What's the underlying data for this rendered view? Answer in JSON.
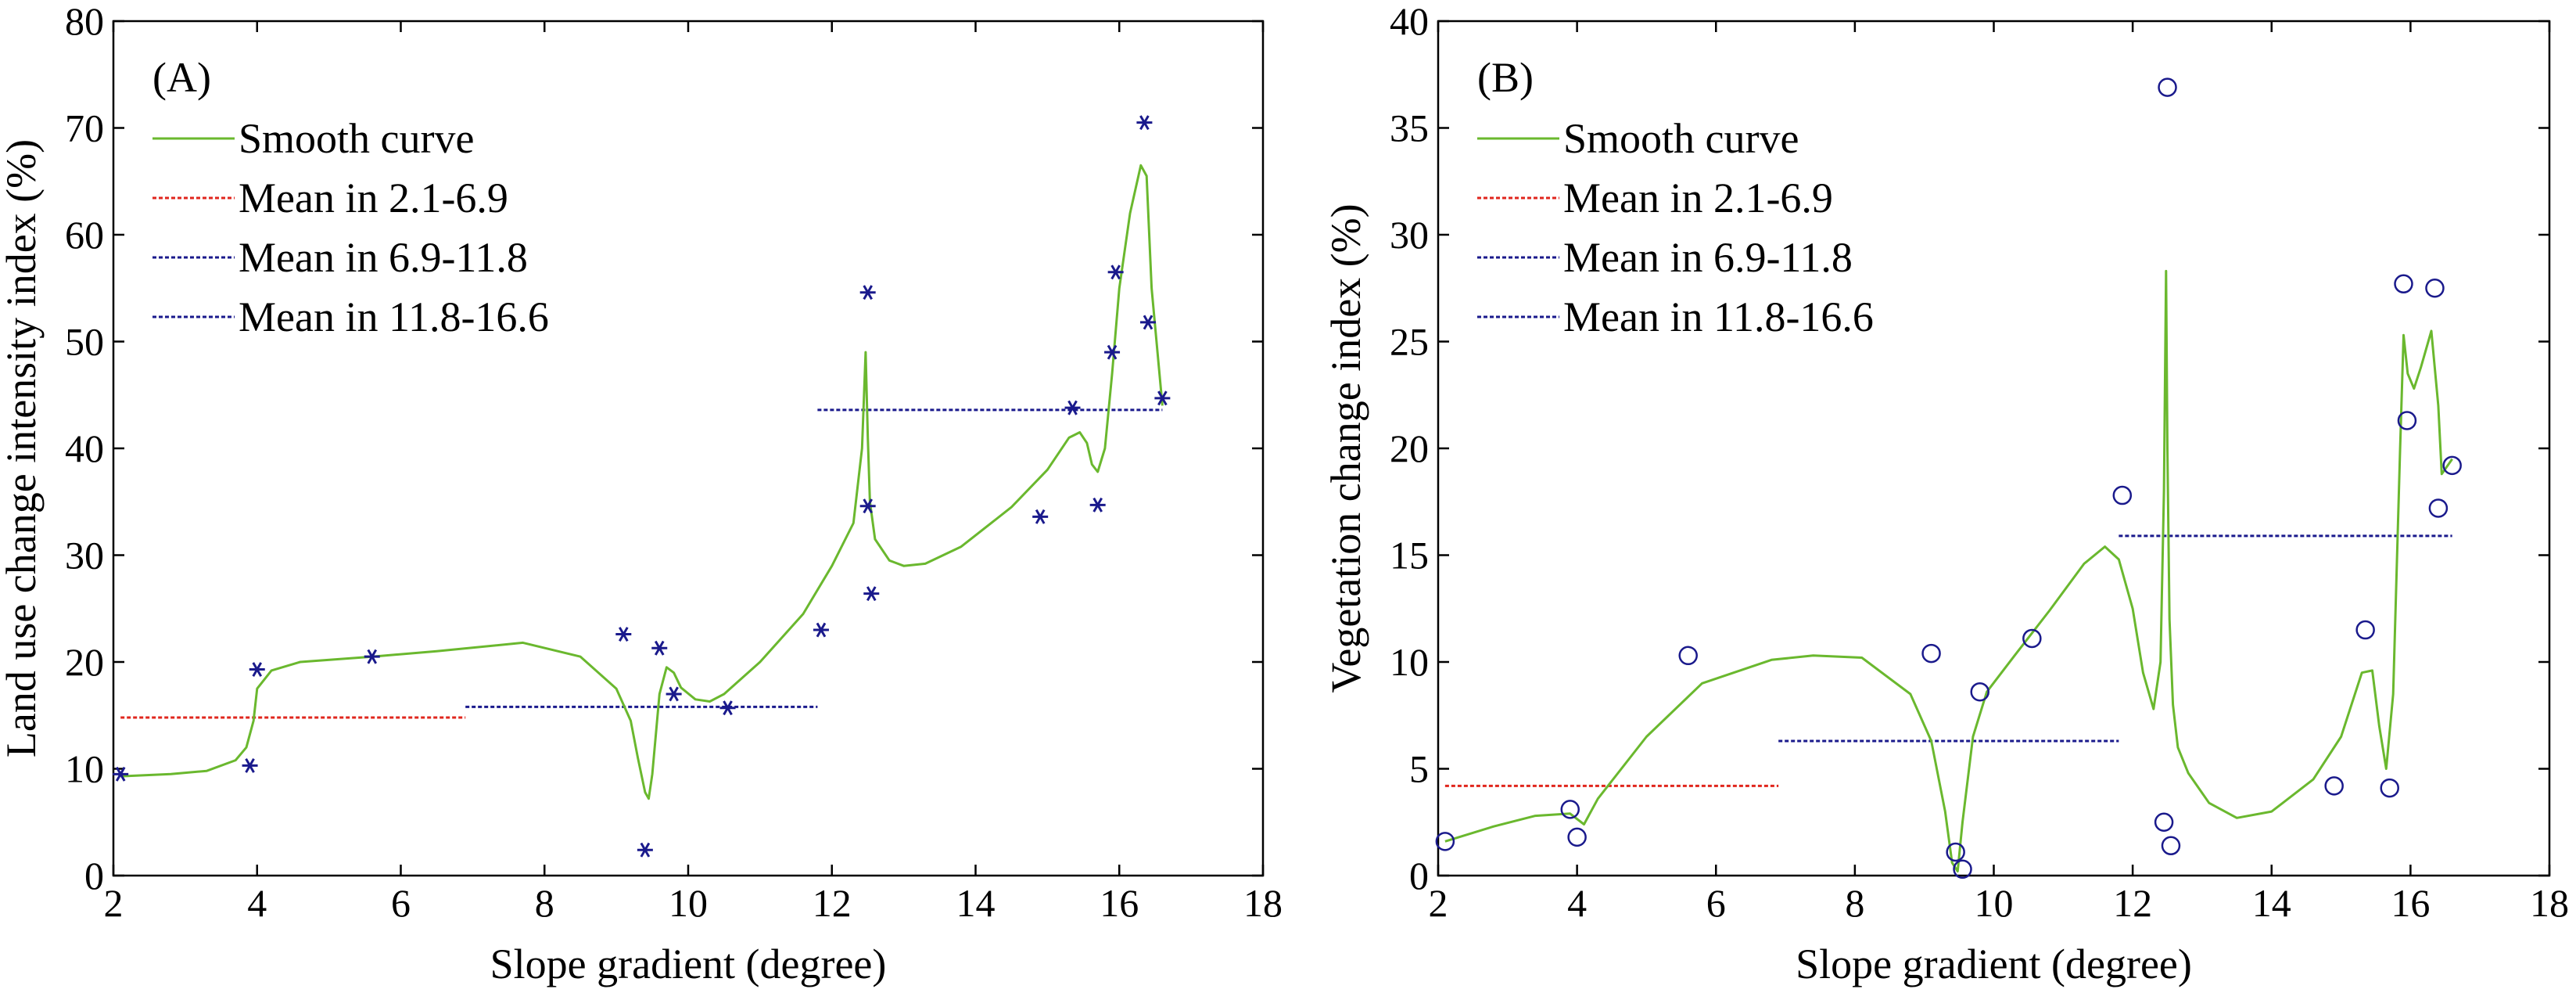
{
  "chart_data": [
    {
      "type": "scatter",
      "panel_label": "(A)",
      "xlabel": "Slope gradient (degree)",
      "ylabel": "Land use change intensity index (%)",
      "xlim": [
        2,
        18
      ],
      "ylim": [
        0,
        80
      ],
      "xticks": [
        2,
        4,
        6,
        8,
        10,
        12,
        14,
        16,
        18
      ],
      "yticks": [
        0,
        10,
        20,
        30,
        40,
        50,
        60,
        70,
        80
      ],
      "marker": "asterisk",
      "marker_color": "#1a1a8c",
      "points": {
        "x": [
          2.1,
          3.9,
          4.0,
          5.6,
          9.1,
          9.4,
          9.6,
          9.8,
          10.55,
          11.85,
          12.5,
          12.5,
          12.55,
          14.9,
          15.35,
          15.7,
          15.9,
          15.95,
          16.35,
          16.4,
          16.6
        ],
        "y": [
          9.5,
          10.3,
          19.3,
          20.5,
          22.6,
          2.4,
          21.3,
          17.0,
          15.7,
          23.0,
          54.6,
          34.6,
          26.4,
          33.6,
          43.8,
          34.7,
          49.0,
          56.5,
          70.5,
          51.8,
          44.7
        ]
      },
      "smooth_curve": {
        "name": "Smooth curve",
        "color": "#6ab82e",
        "x": [
          2.1,
          2.8,
          3.3,
          3.7,
          3.85,
          3.95,
          4.0,
          4.2,
          4.6,
          5.6,
          6.5,
          7.7,
          8.5,
          9.0,
          9.2,
          9.3,
          9.4,
          9.45,
          9.5,
          9.6,
          9.7,
          9.8,
          9.9,
          10.1,
          10.3,
          10.5,
          11.0,
          11.6,
          12.0,
          12.3,
          12.42,
          12.47,
          12.5,
          12.53,
          12.6,
          12.8,
          13.0,
          13.3,
          13.8,
          14.5,
          15.0,
          15.3,
          15.45,
          15.55,
          15.62,
          15.7,
          15.8,
          15.9,
          16.0,
          16.15,
          16.3,
          16.38,
          16.45,
          16.6
        ],
        "y": [
          9.3,
          9.5,
          9.8,
          10.8,
          12.0,
          14.5,
          17.5,
          19.2,
          20.0,
          20.5,
          21.0,
          21.8,
          20.5,
          17.5,
          14.5,
          11.0,
          7.8,
          7.2,
          9.5,
          17.0,
          19.5,
          19.0,
          17.6,
          16.5,
          16.3,
          17.0,
          20.0,
          24.5,
          29.0,
          33.0,
          40.0,
          49.0,
          41.0,
          35.0,
          31.5,
          29.5,
          29.0,
          29.2,
          30.8,
          34.5,
          38.0,
          41.0,
          41.5,
          40.5,
          38.5,
          37.8,
          40.0,
          47.0,
          55.0,
          62.0,
          66.5,
          65.5,
          55.0,
          44.0
        ]
      },
      "mean_lines": [
        {
          "name": "Mean in 2.1-6.9",
          "color": "#e0261d",
          "x": [
            2.1,
            6.9
          ],
          "y": 14.8
        },
        {
          "name": "Mean in 6.9-11.8",
          "color": "#1a1a8c",
          "x": [
            6.9,
            11.8
          ],
          "y": 15.8
        },
        {
          "name": "Mean in 11.8-16.6",
          "color": "#1a1a8c",
          "x": [
            11.8,
            16.6
          ],
          "y": 43.6
        }
      ],
      "legend": [
        "Smooth curve",
        "Mean in 2.1-6.9",
        "Mean in 6.9-11.8",
        "Mean in 11.8-16.6"
      ],
      "legend_placement": "top-left"
    },
    {
      "type": "scatter",
      "panel_label": "(B)",
      "xlabel": "Slope gradient (degree)",
      "ylabel": "Vegetation change index (%)",
      "xlim": [
        2,
        18
      ],
      "ylim": [
        0,
        40
      ],
      "xticks": [
        2,
        4,
        6,
        8,
        10,
        12,
        14,
        16,
        18
      ],
      "yticks": [
        0,
        5,
        10,
        15,
        20,
        25,
        30,
        35,
        40
      ],
      "marker": "circle",
      "marker_color": "#1a1a8c",
      "points": {
        "x": [
          2.1,
          3.9,
          4.0,
          5.6,
          9.1,
          9.45,
          9.55,
          9.8,
          10.55,
          11.85,
          12.45,
          12.5,
          12.55,
          14.9,
          15.35,
          15.7,
          15.9,
          15.95,
          16.35,
          16.4,
          16.6
        ],
        "y": [
          1.6,
          3.1,
          1.8,
          10.3,
          10.4,
          1.1,
          0.3,
          8.6,
          11.1,
          17.8,
          2.5,
          36.9,
          1.4,
          4.2,
          11.5,
          4.1,
          27.7,
          21.3,
          27.5,
          17.2,
          19.2
        ]
      },
      "smooth_curve": {
        "name": "Smooth curve",
        "color": "#6ab82e",
        "x": [
          2.1,
          2.8,
          3.4,
          3.9,
          4.1,
          4.3,
          5.0,
          5.8,
          6.8,
          7.4,
          8.1,
          8.8,
          9.1,
          9.3,
          9.4,
          9.48,
          9.55,
          9.7,
          9.9,
          10.3,
          10.8,
          11.3,
          11.6,
          11.8,
          12.0,
          12.15,
          12.3,
          12.4,
          12.45,
          12.48,
          12.5,
          12.53,
          12.58,
          12.65,
          12.8,
          13.1,
          13.5,
          14.0,
          14.6,
          15.0,
          15.3,
          15.45,
          15.55,
          15.65,
          15.75,
          15.85,
          15.9,
          15.96,
          16.05,
          16.15,
          16.3,
          16.4,
          16.45,
          16.6
        ],
        "y": [
          1.6,
          2.3,
          2.8,
          2.9,
          2.4,
          3.6,
          6.5,
          9.0,
          10.1,
          10.3,
          10.2,
          8.5,
          6.3,
          3.0,
          0.6,
          0.2,
          2.5,
          6.5,
          8.6,
          10.3,
          12.4,
          14.6,
          15.4,
          14.8,
          12.5,
          9.5,
          7.8,
          10.0,
          18.0,
          28.3,
          20.0,
          12.0,
          8.0,
          6.0,
          4.8,
          3.4,
          2.7,
          3.0,
          4.5,
          6.5,
          9.5,
          9.6,
          7.0,
          5.0,
          8.5,
          20.0,
          25.3,
          23.5,
          22.8,
          23.8,
          25.5,
          22.0,
          18.8,
          19.5
        ]
      },
      "mean_lines": [
        {
          "name": "Mean in 2.1-6.9",
          "color": "#e0261d",
          "x": [
            2.1,
            6.9
          ],
          "y": 4.2
        },
        {
          "name": "Mean in 6.9-11.8",
          "color": "#1a1a8c",
          "x": [
            6.9,
            11.8
          ],
          "y": 6.3
        },
        {
          "name": "Mean in 11.8-16.6",
          "color": "#1a1a8c",
          "x": [
            11.8,
            16.6
          ],
          "y": 15.9
        }
      ],
      "legend": [
        "Smooth curve",
        "Mean in 2.1-6.9",
        "Mean in 6.9-11.8",
        "Mean in 11.8-16.6"
      ],
      "legend_placement": "top-left"
    }
  ]
}
